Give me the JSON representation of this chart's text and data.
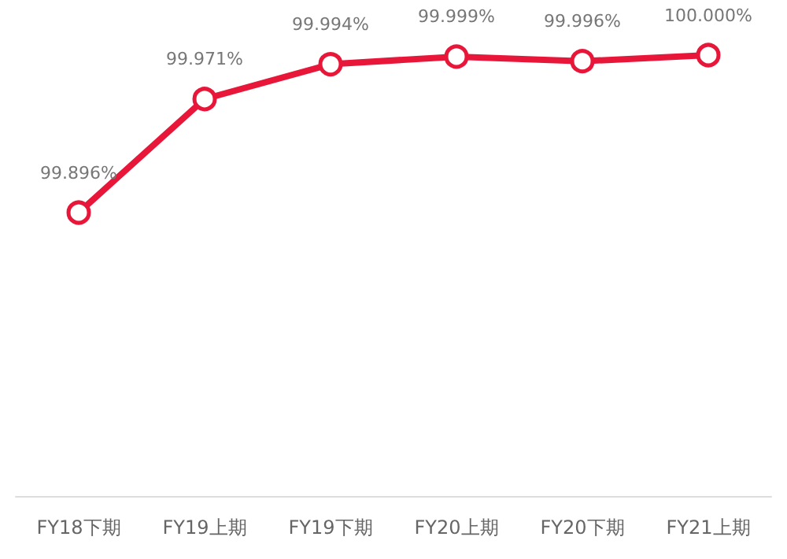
{
  "chart_data": {
    "type": "line",
    "categories": [
      "FY18下期",
      "FY19上期",
      "FY19下期",
      "FY20上期",
      "FY20下期",
      "FY21上期"
    ],
    "series": [
      {
        "color": "#e8173a",
        "values": [
          99.896,
          99.971,
          99.994,
          99.999,
          99.996,
          100.0
        ],
        "value_labels": [
          "99.896%",
          "99.971%",
          "99.994%",
          "99.999%",
          "99.996%",
          "100.000%"
        ]
      }
    ],
    "tick_labels": "x",
    "marker": "circle",
    "line_style": "solid"
  }
}
